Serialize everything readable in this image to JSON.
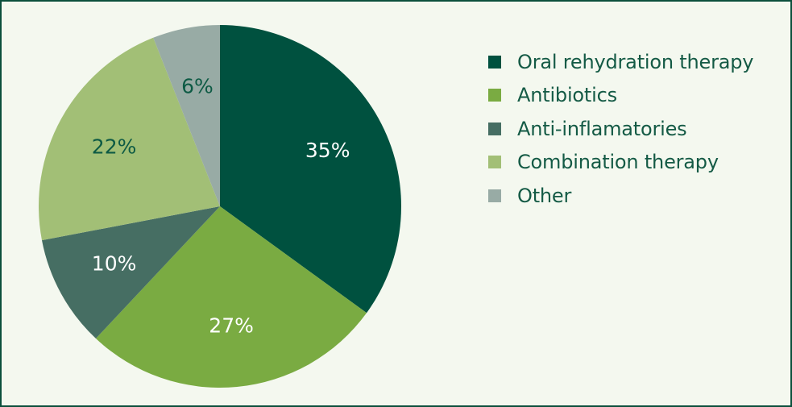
{
  "chart_data": {
    "type": "pie",
    "start_angle_deg": 0,
    "direction": "clockwise",
    "slices": [
      {
        "name": "Oral rehydration therapy",
        "value": 35,
        "label": "35%",
        "color": "#00513f",
        "label_color": "#ffffff"
      },
      {
        "name": "Antibiotics",
        "value": 27,
        "label": "27%",
        "color": "#7aab42",
        "label_color": "#ffffff"
      },
      {
        "name": "Anti-inflamatories",
        "value": 10,
        "label": "10%",
        "color": "#466e63",
        "label_color": "#ffffff"
      },
      {
        "name": "Combination therapy",
        "value": 22,
        "label": "22%",
        "color": "#a2bf76",
        "label_color": "#0d5a44"
      },
      {
        "name": "Other",
        "value": 6,
        "label": "6%",
        "color": "#98aba5",
        "label_color": "#0d5a44"
      }
    ],
    "legend_placement": "right",
    "title": ""
  }
}
